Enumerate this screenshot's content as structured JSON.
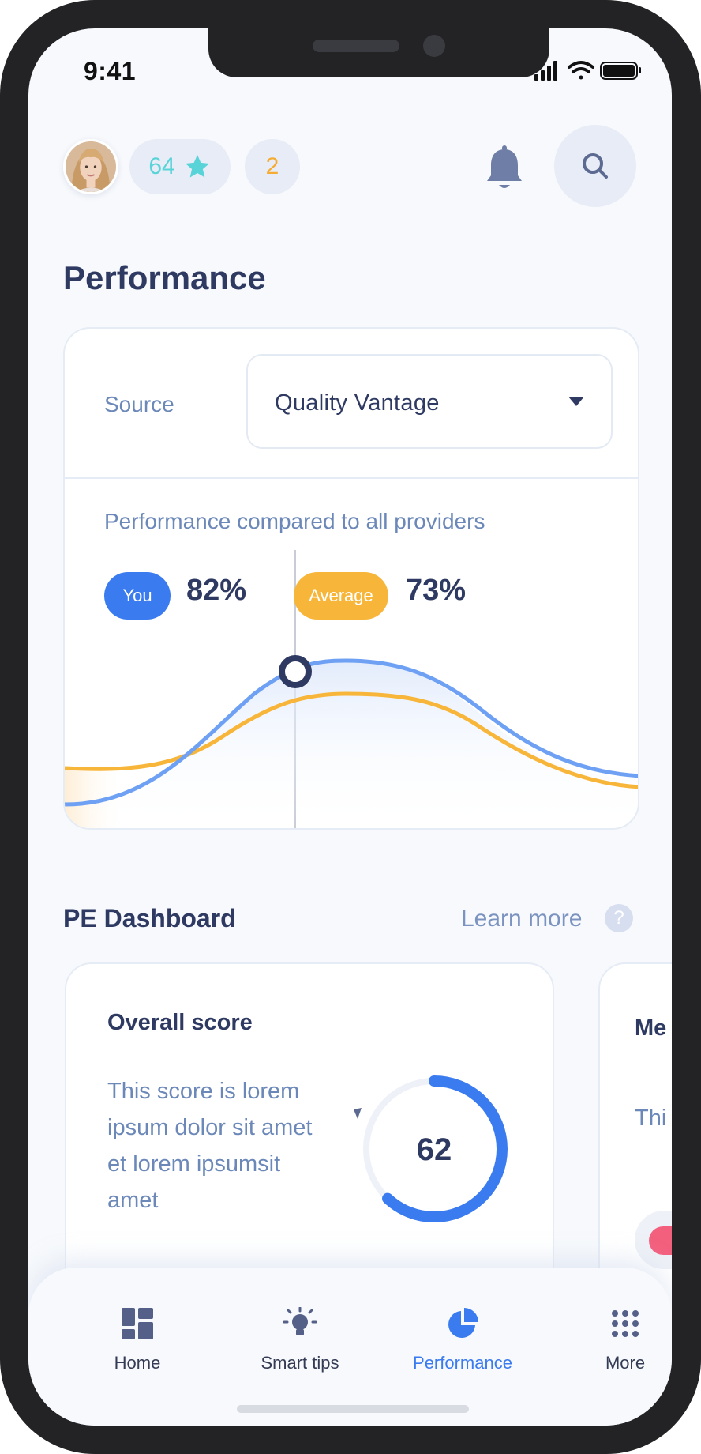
{
  "status_bar": {
    "time": "9:41"
  },
  "header": {
    "score": "64",
    "notification_count": "2",
    "icons": [
      "avatar",
      "star-icon",
      "bell-icon",
      "search-icon"
    ]
  },
  "page_title": "Performance",
  "performance_card": {
    "source_label": "Source",
    "source_value": "Quality Vantage",
    "subtitle": "Performance compared to all providers",
    "you_label": "You",
    "you_value": "82%",
    "average_label": "Average",
    "average_value": "73%",
    "colors": {
      "you": "#3a7bf0",
      "average": "#f7b63a"
    }
  },
  "dashboard": {
    "title": "PE Dashboard",
    "learn_more": "Learn more",
    "help_glyph": "?",
    "cards": [
      {
        "title": "Overall score",
        "description": "This score is lorem ipsum dolor sit amet et lorem ipsumsit amet",
        "score": "62",
        "gauge_fraction": 0.62
      },
      {
        "title": "Me per",
        "description": "Thi am"
      }
    ]
  },
  "bottom_nav": {
    "items": [
      {
        "label": "Home",
        "icon": "dashboard-icon"
      },
      {
        "label": "Smart tips",
        "icon": "bulb-icon"
      },
      {
        "label": "Performance",
        "icon": "pie-chart-icon"
      },
      {
        "label": "More",
        "icon": "grid-dots-icon"
      }
    ],
    "active": "Performance"
  }
}
